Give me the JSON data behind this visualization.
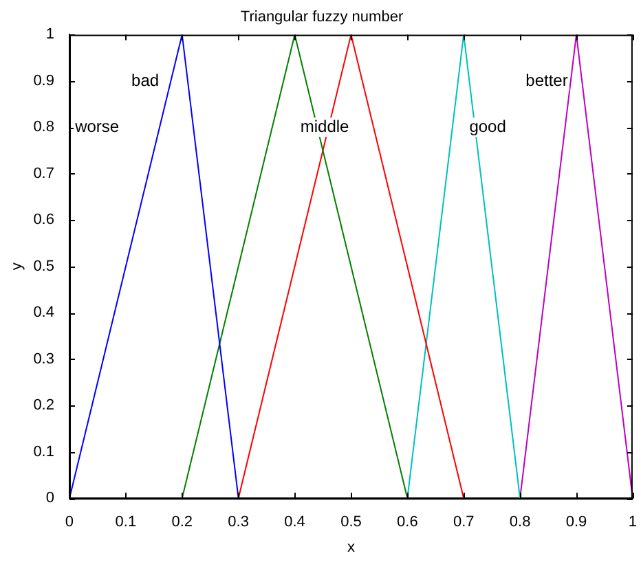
{
  "chart_data": {
    "type": "line",
    "title": "Triangular fuzzy number",
    "xlabel": "x",
    "ylabel": "y",
    "xlim": [
      0,
      1
    ],
    "xticks": [
      0,
      0.1,
      0.2,
      0.3,
      0.4,
      0.5,
      0.6,
      0.7,
      0.8,
      0.9,
      1
    ],
    "ylim": [
      0,
      1
    ],
    "yticks": [
      0,
      0.1,
      0.2,
      0.3,
      0.4,
      0.5,
      0.6,
      0.7,
      0.8,
      0.9,
      1
    ],
    "grid": false,
    "legend": false,
    "marker": "none",
    "line_style": "solid",
    "series": [
      {
        "color": "#0000ff",
        "x": [
          0,
          0.2,
          0.3
        ],
        "values": [
          0,
          1,
          0
        ]
      },
      {
        "color": "#008000",
        "x": [
          0.2,
          0.4,
          0.6
        ],
        "values": [
          0,
          1,
          0
        ]
      },
      {
        "color": "#ff0000",
        "x": [
          0.3,
          0.5,
          0.7
        ],
        "values": [
          0,
          1,
          0
        ]
      },
      {
        "color": "#00bfbf",
        "x": [
          0.6,
          0.7,
          0.8
        ],
        "values": [
          0,
          1,
          0
        ]
      },
      {
        "color": "#bf00bf",
        "x": [
          0.8,
          0.9,
          1
        ],
        "values": [
          0,
          1,
          0
        ]
      }
    ],
    "annotations": [
      "worse",
      "bad",
      "middle",
      "good",
      "better"
    ]
  }
}
